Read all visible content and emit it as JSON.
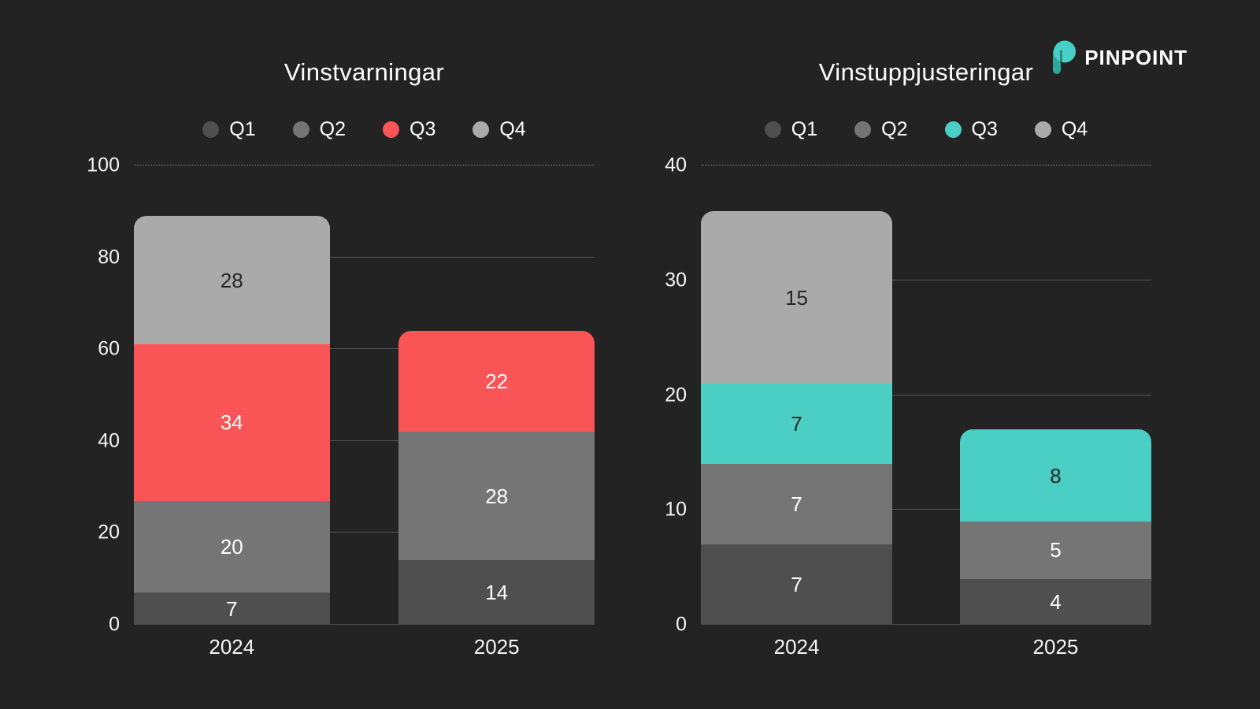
{
  "page": {
    "background": "#232323"
  },
  "logo": {
    "text": "PINPOINT",
    "icon": "pinpoint-p-icon",
    "icon_color": "#49D0C6",
    "icon_accent": "#2EA79D",
    "text_color": "#FFFFFF"
  },
  "chart_data": [
    {
      "type": "bar",
      "stacked": true,
      "title": "Vinstvarningar",
      "categories": [
        "2024",
        "2025"
      ],
      "series": [
        {
          "name": "Q1",
          "color": "#4F4F4F",
          "label_color": "#FFFFFF",
          "values": [
            7,
            14
          ]
        },
        {
          "name": "Q2",
          "color": "#757575",
          "label_color": "#FFFFFF",
          "values": [
            20,
            28
          ]
        },
        {
          "name": "Q3",
          "color": "#F95456",
          "label_color": "#FFFFFF",
          "values": [
            34,
            22
          ]
        },
        {
          "name": "Q4",
          "color": "#AAAAAA",
          "label_color": "#262626",
          "values": [
            28,
            0
          ]
        }
      ],
      "ylim": [
        0,
        100
      ],
      "yticks": [
        0,
        20,
        40,
        60,
        80,
        100
      ],
      "xlabel": "",
      "ylabel": "",
      "legend_position": "top",
      "grid": true
    },
    {
      "type": "bar",
      "stacked": true,
      "title": "Vinstuppjusteringar",
      "categories": [
        "2024",
        "2025"
      ],
      "series": [
        {
          "name": "Q1",
          "color": "#4F4F4F",
          "label_color": "#FFFFFF",
          "values": [
            7,
            4
          ]
        },
        {
          "name": "Q2",
          "color": "#757575",
          "label_color": "#FFFFFF",
          "values": [
            7,
            5
          ]
        },
        {
          "name": "Q3",
          "color": "#4BCFC5",
          "label_color": "#262626",
          "values": [
            7,
            8
          ]
        },
        {
          "name": "Q4",
          "color": "#AAAAAA",
          "label_color": "#262626",
          "values": [
            15,
            0
          ]
        }
      ],
      "ylim": [
        0,
        40
      ],
      "yticks": [
        0,
        10,
        20,
        30,
        40
      ],
      "xlabel": "",
      "ylabel": "",
      "legend_position": "top",
      "grid": true
    }
  ]
}
